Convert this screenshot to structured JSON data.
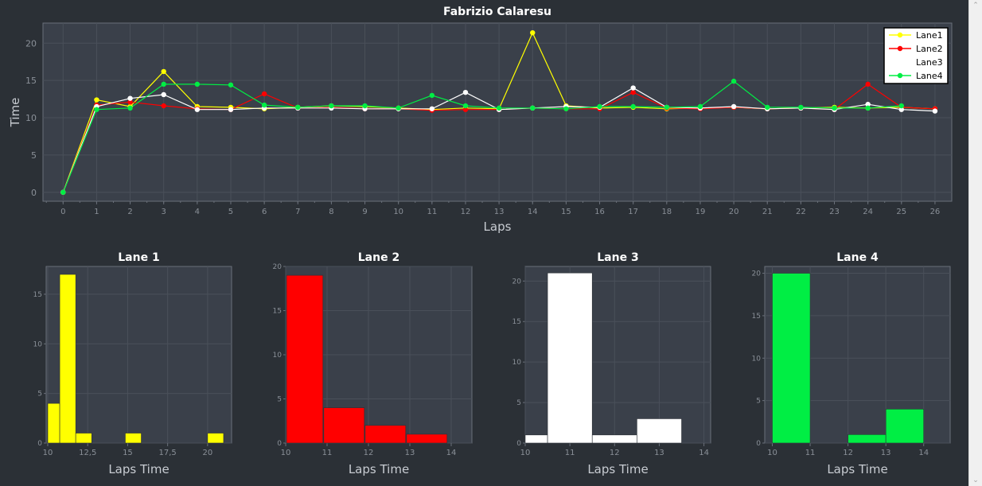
{
  "chart_data": [
    {
      "type": "line",
      "title": "Fabrizio Calaresu",
      "xlabel": "Laps",
      "ylabel": "Time",
      "xlim": [
        -0.6,
        26.5
      ],
      "ylim": [
        -1.2,
        22.7
      ],
      "xticks": [
        0,
        1,
        2,
        3,
        4,
        5,
        6,
        7,
        8,
        9,
        10,
        11,
        12,
        13,
        14,
        15,
        16,
        17,
        18,
        19,
        20,
        21,
        22,
        23,
        24,
        25,
        26
      ],
      "yticks": [
        0,
        5,
        10,
        15,
        20
      ],
      "grid": true,
      "legend": "top-right",
      "x": [
        0,
        1,
        2,
        3,
        4,
        5,
        6,
        7,
        8,
        9,
        10,
        11,
        12,
        13,
        14,
        15,
        16,
        17,
        18,
        19,
        20,
        21,
        22,
        23,
        24,
        25,
        26
      ],
      "series": [
        {
          "name": "Lane1",
          "color": "#ffff00",
          "values": [
            0,
            12.4,
            11.5,
            16.2,
            11.5,
            11.4,
            11.2,
            11.4,
            11.6,
            11.5,
            11.3,
            11.1,
            11.3,
            11.2,
            21.4,
            11.6,
            11.3,
            11.4,
            11.2,
            11.3,
            11.4,
            11.2,
            11.3,
            11.4,
            11.3,
            11.4,
            11.2
          ]
        },
        {
          "name": "Lane2",
          "color": "#ff0000",
          "values": [
            0,
            11.7,
            12.1,
            11.6,
            11.2,
            11.1,
            13.2,
            11.3,
            11.4,
            11.2,
            11.2,
            11.0,
            11.1,
            11.1,
            11.3,
            11.2,
            11.2,
            13.4,
            11.3,
            11.2,
            11.4,
            11.2,
            11.3,
            11.1,
            14.5,
            11.4,
            11.2
          ]
        },
        {
          "name": "Lane3",
          "color": "#ffffff",
          "values": [
            0,
            11.5,
            12.6,
            13.1,
            11.1,
            11.1,
            11.3,
            11.3,
            11.3,
            11.2,
            11.2,
            11.2,
            13.4,
            11.1,
            11.3,
            11.5,
            11.4,
            14.0,
            11.4,
            11.3,
            11.5,
            11.2,
            11.3,
            11.1,
            11.8,
            11.1,
            10.9
          ]
        },
        {
          "name": "Lane4",
          "color": "#00ee44",
          "values": [
            0,
            11.1,
            11.3,
            14.5,
            14.5,
            14.4,
            11.7,
            11.4,
            11.6,
            11.6,
            11.3,
            13.0,
            11.6,
            11.3,
            11.3,
            11.2,
            11.5,
            11.5,
            11.4,
            11.5,
            14.9,
            11.4,
            11.4,
            11.3,
            11.3,
            11.6,
            null
          ]
        }
      ]
    },
    {
      "type": "bar",
      "title": "Lane 1",
      "xlabel": "Laps Time",
      "color": "#ffff00",
      "xlim": [
        9.9,
        21.5
      ],
      "ylim": [
        0,
        17.8
      ],
      "xticks": [
        10,
        12.5,
        15,
        17.5,
        20
      ],
      "xtick_labels": [
        "10",
        "12,5",
        "15",
        "17,5",
        "20"
      ],
      "yticks": [
        0,
        5,
        10,
        15
      ],
      "bins": [
        [
          10.0,
          10.75,
          4
        ],
        [
          10.75,
          11.75,
          17
        ],
        [
          11.75,
          12.75,
          1
        ],
        [
          14.85,
          15.85,
          1
        ],
        [
          20.0,
          21.0,
          1
        ]
      ]
    },
    {
      "type": "bar",
      "title": "Lane 2",
      "xlabel": "Laps Time",
      "color": "#ff0000",
      "xlim": [
        10.0,
        14.5
      ],
      "ylim": [
        0,
        20.0
      ],
      "xticks": [
        10,
        11,
        12,
        13,
        14
      ],
      "xtick_labels": [
        "10",
        "11",
        "12",
        "13",
        "14"
      ],
      "yticks": [
        0,
        5,
        10,
        15,
        20
      ],
      "bins": [
        [
          10.02,
          10.9,
          19
        ],
        [
          10.92,
          11.9,
          4
        ],
        [
          11.92,
          12.9,
          2
        ],
        [
          12.92,
          13.9,
          1
        ]
      ]
    },
    {
      "type": "bar",
      "title": "Lane 3",
      "xlabel": "Laps Time",
      "color": "#ffffff",
      "xlim": [
        10.0,
        14.15
      ],
      "ylim": [
        0,
        21.8
      ],
      "xticks": [
        10,
        11,
        12,
        13,
        14
      ],
      "xtick_labels": [
        "10",
        "11",
        "12",
        "13",
        "14"
      ],
      "yticks": [
        0,
        5,
        10,
        15,
        20
      ],
      "bins": [
        [
          10.0,
          10.5,
          1
        ],
        [
          10.5,
          11.5,
          21
        ],
        [
          11.5,
          12.5,
          1
        ],
        [
          12.5,
          13.5,
          3
        ]
      ]
    },
    {
      "type": "bar",
      "title": "Lane 4",
      "xlabel": "Laps Time",
      "color": "#00ee44",
      "xlim": [
        9.8,
        14.7
      ],
      "ylim": [
        0,
        20.8
      ],
      "xticks": [
        10,
        11,
        12,
        13,
        14
      ],
      "xtick_labels": [
        "10",
        "11",
        "12",
        "13",
        "14"
      ],
      "yticks": [
        0,
        5,
        10,
        15,
        20
      ],
      "bins": [
        [
          10.0,
          11.0,
          20
        ],
        [
          12.0,
          13.0,
          1
        ],
        [
          13.0,
          14.0,
          4
        ]
      ]
    }
  ]
}
